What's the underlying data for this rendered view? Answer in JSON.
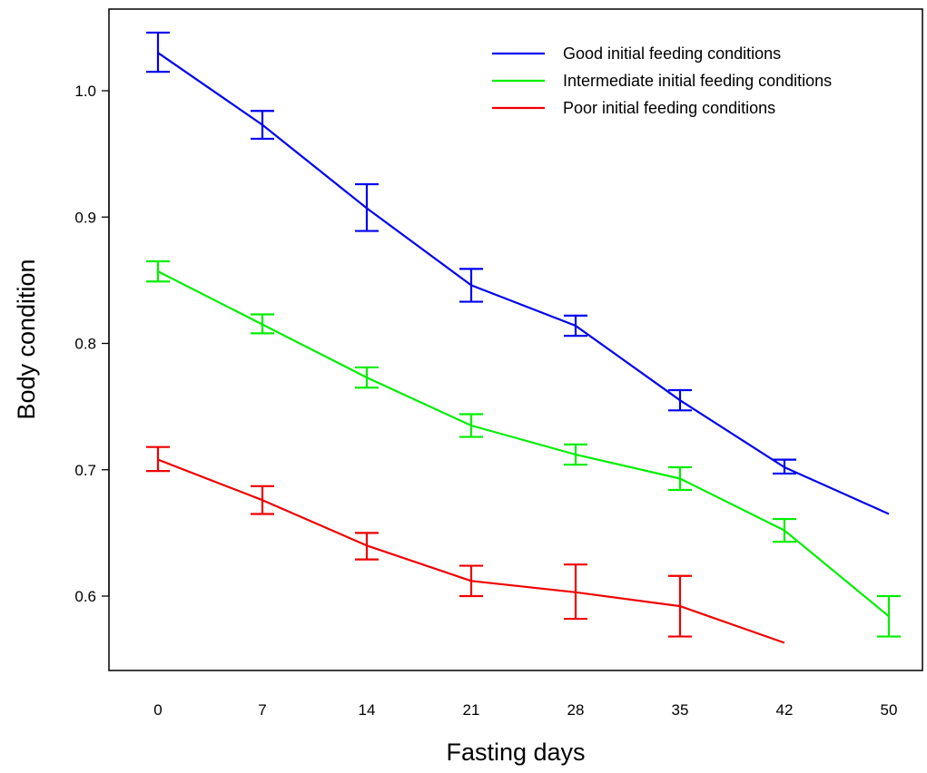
{
  "chart_data": {
    "type": "line",
    "title": "",
    "xlabel": "Fasting days",
    "ylabel": "Body condition",
    "x_tick_labels": [
      "0",
      "7",
      "14",
      "21",
      "28",
      "35",
      "42",
      "50"
    ],
    "y_ticks": [
      0.6,
      0.7,
      0.8,
      0.9,
      1.0
    ],
    "y_tick_labels": [
      "0.6",
      "0.7",
      "0.8",
      "0.9",
      "1.0"
    ],
    "ylim": [
      0.54,
      1.065
    ],
    "grid": false,
    "legend_position": "top-right",
    "series": [
      {
        "name": "Good initial feeding conditions",
        "color": "#0000ee",
        "x": [
          0,
          7,
          14,
          21,
          28,
          35,
          42,
          50
        ],
        "y": [
          1.03,
          0.973,
          0.907,
          0.846,
          0.814,
          0.755,
          0.702,
          0.665
        ],
        "err_low": [
          1.015,
          0.962,
          0.889,
          0.833,
          0.806,
          0.747,
          0.697,
          null
        ],
        "err_high": [
          1.046,
          0.984,
          0.926,
          0.859,
          0.822,
          0.763,
          0.708,
          null
        ]
      },
      {
        "name": "Intermediate initial feeding conditions",
        "color": "#00ee00",
        "x": [
          0,
          7,
          14,
          21,
          28,
          35,
          42,
          50
        ],
        "y": [
          0.857,
          0.815,
          0.773,
          0.735,
          0.712,
          0.693,
          0.652,
          0.584
        ],
        "err_low": [
          0.849,
          0.808,
          0.765,
          0.726,
          0.704,
          0.684,
          0.643,
          0.568
        ],
        "err_high": [
          0.865,
          0.823,
          0.781,
          0.744,
          0.72,
          0.702,
          0.661,
          0.6
        ]
      },
      {
        "name": "Poor initial feeding conditions",
        "color": "#ee0000",
        "x": [
          0,
          7,
          14,
          21,
          28,
          35,
          42
        ],
        "y": [
          0.708,
          0.676,
          0.64,
          0.612,
          0.603,
          0.592,
          0.563
        ],
        "err_low": [
          0.699,
          0.665,
          0.629,
          0.6,
          0.582,
          0.568,
          null
        ],
        "err_high": [
          0.718,
          0.687,
          0.65,
          0.624,
          0.625,
          0.616,
          null
        ]
      }
    ]
  }
}
